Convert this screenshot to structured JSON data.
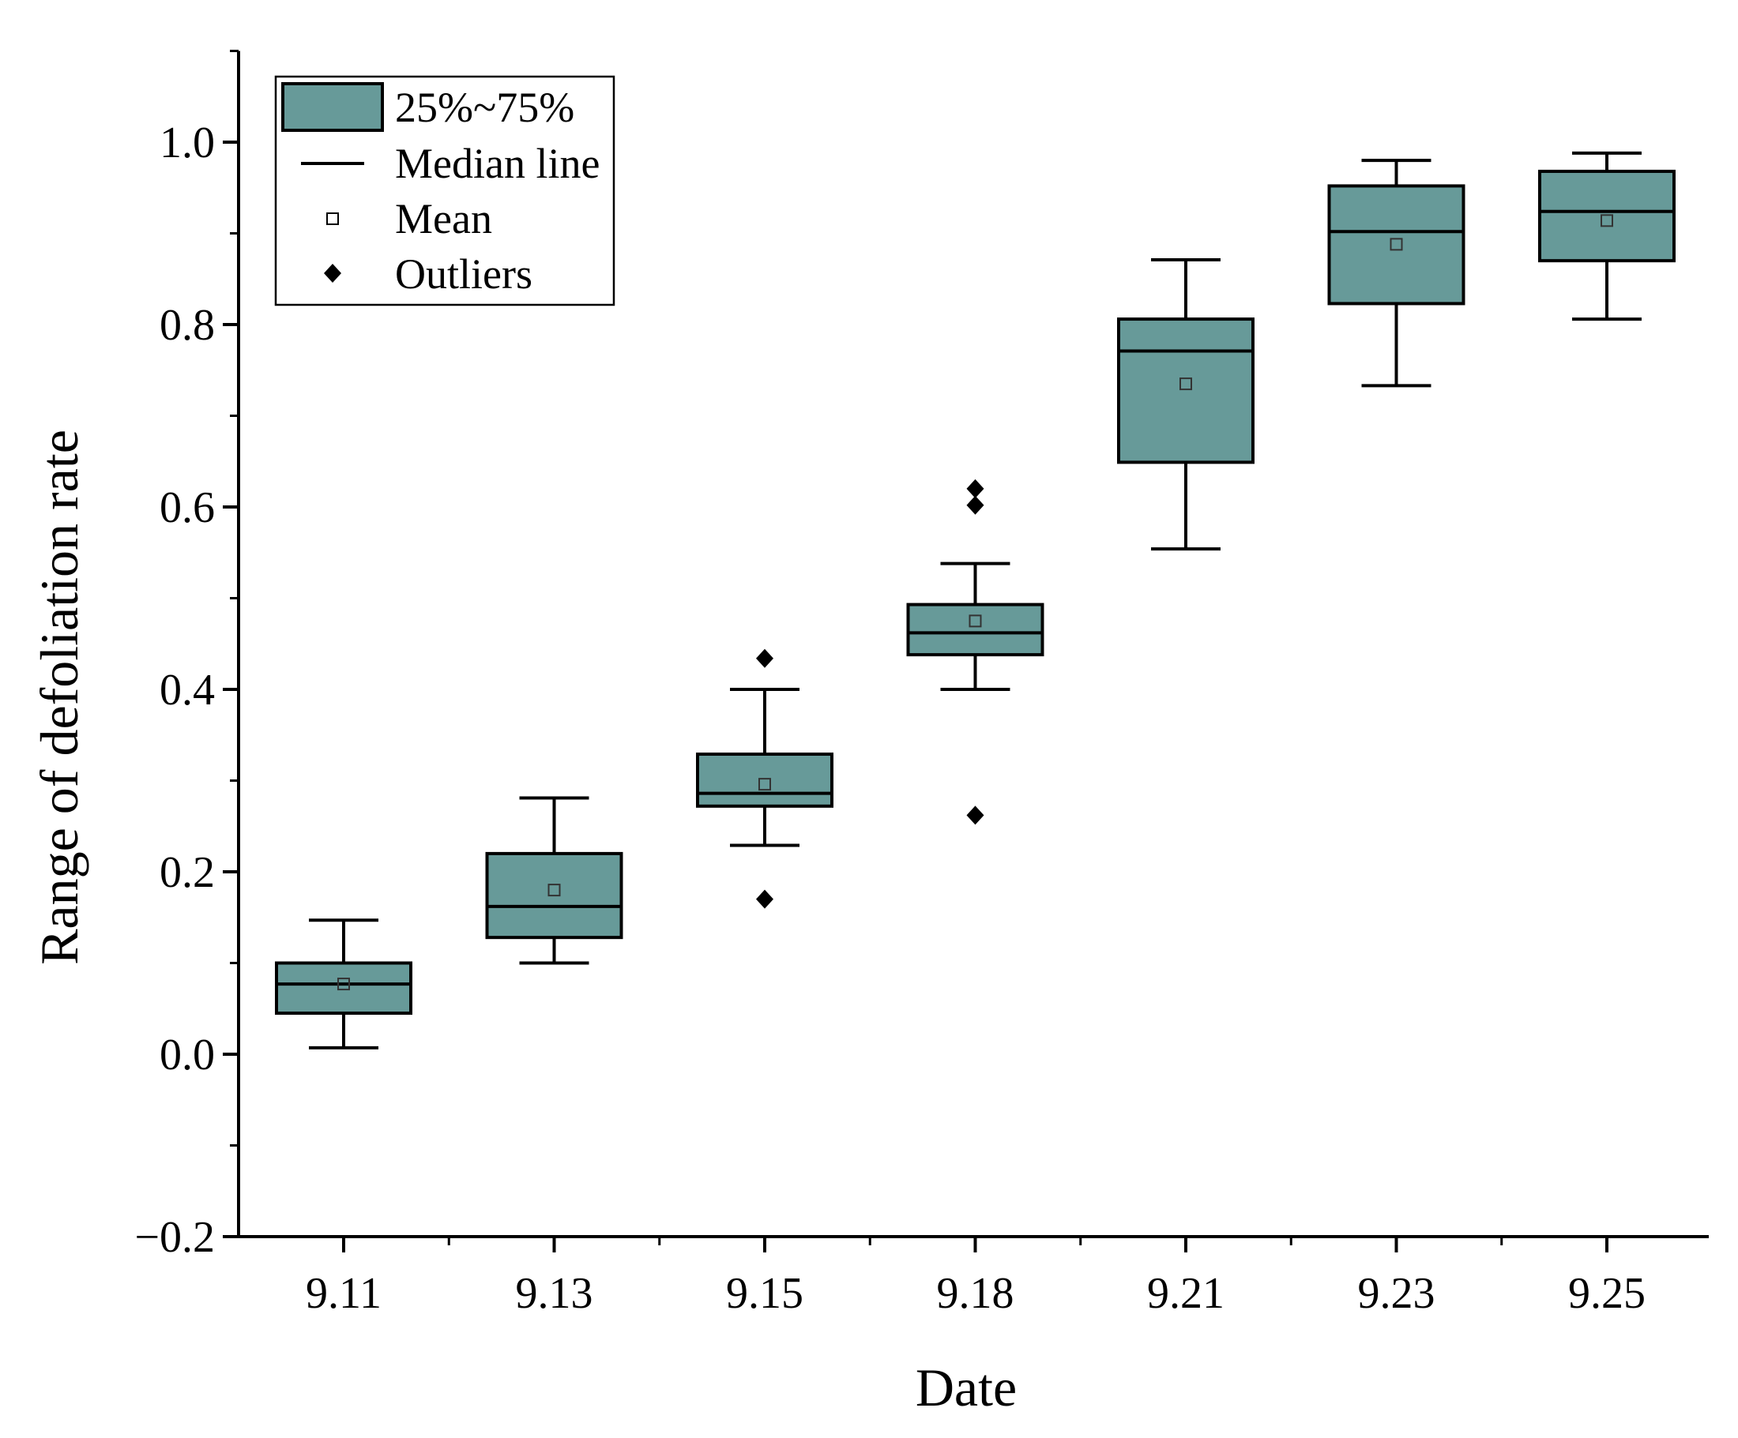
{
  "chart_data": {
    "type": "box",
    "xlabel": "Date",
    "ylabel": "Range of defoliation rate",
    "ylim": [
      -0.2,
      1.1
    ],
    "yticks": [
      "−0.2",
      "0.0",
      "0.2",
      "0.4",
      "0.6",
      "0.8",
      "1.0"
    ],
    "ytick_values": [
      -0.2,
      0.0,
      0.2,
      0.4,
      0.6,
      0.8,
      1.0
    ],
    "categories": [
      "9.11",
      "9.13",
      "9.15",
      "9.18",
      "9.21",
      "9.23",
      "9.25"
    ],
    "boxes": [
      {
        "date": "9.11",
        "whisker_low": 0.007,
        "q1": 0.045,
        "median": 0.077,
        "q3": 0.1,
        "whisker_high": 0.147,
        "mean": 0.077,
        "outliers": []
      },
      {
        "date": "9.13",
        "whisker_low": 0.1,
        "q1": 0.128,
        "median": 0.162,
        "q3": 0.22,
        "whisker_high": 0.281,
        "mean": 0.18,
        "outliers": []
      },
      {
        "date": "9.15",
        "whisker_low": 0.229,
        "q1": 0.272,
        "median": 0.286,
        "q3": 0.329,
        "whisker_high": 0.4,
        "mean": 0.296,
        "outliers": [
          0.434,
          0.17
        ]
      },
      {
        "date": "9.18",
        "whisker_low": 0.4,
        "q1": 0.438,
        "median": 0.462,
        "q3": 0.493,
        "whisker_high": 0.538,
        "mean": 0.475,
        "outliers": [
          0.62,
          0.602,
          0.262
        ]
      },
      {
        "date": "9.21",
        "whisker_low": 0.554,
        "q1": 0.649,
        "median": 0.771,
        "q3": 0.806,
        "whisker_high": 0.871,
        "mean": 0.735,
        "outliers": []
      },
      {
        "date": "9.23",
        "whisker_low": 0.733,
        "q1": 0.823,
        "median": 0.902,
        "q3": 0.952,
        "whisker_high": 0.98,
        "mean": 0.888,
        "outliers": []
      },
      {
        "date": "9.25",
        "whisker_low": 0.806,
        "q1": 0.87,
        "median": 0.924,
        "q3": 0.968,
        "whisker_high": 0.988,
        "mean": 0.914,
        "outliers": []
      }
    ],
    "legend": {
      "position": "top-left",
      "entries": [
        "25%~75%",
        "Median line",
        "Mean",
        "Outliers"
      ]
    },
    "colors": {
      "box_fill": "#679a99",
      "line": "#000000"
    }
  }
}
